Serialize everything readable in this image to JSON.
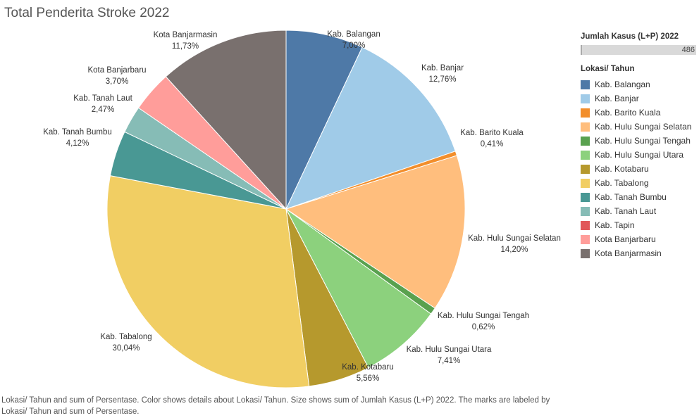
{
  "title": "Total Penderita Stroke 2022",
  "legend": {
    "size_title": "Jumlah Kasus (L+P) 2022",
    "size_value": "486",
    "color_title": "Lokasi/ Tahun"
  },
  "footer": "Lokasi/ Tahun and sum of Persentase.  Color shows details about Lokasi/ Tahun.  Size shows sum of Jumlah Kasus (L+P) 2022.  The marks are labeled by Lokasi/ Tahun and sum of Persentase.",
  "chart_data": {
    "type": "pie",
    "title": "Total Penderita Stroke 2022",
    "slices": [
      {
        "name": "Kab. Balangan",
        "value": 7.0,
        "label": "7,00%",
        "color": "#4e79a7"
      },
      {
        "name": "Kab. Banjar",
        "value": 12.76,
        "label": "12,76%",
        "color": "#a0cbe8"
      },
      {
        "name": "Kab. Barito Kuala",
        "value": 0.41,
        "label": "0,41%",
        "color": "#f28e2b"
      },
      {
        "name": "Kab. Hulu Sungai Selatan",
        "value": 14.2,
        "label": "14,20%",
        "color": "#ffbe7d"
      },
      {
        "name": "Kab. Hulu Sungai Tengah",
        "value": 0.62,
        "label": "0,62%",
        "color": "#59a14f"
      },
      {
        "name": "Kab. Hulu Sungai Utara",
        "value": 7.41,
        "label": "7,41%",
        "color": "#8cd17d"
      },
      {
        "name": "Kab. Kotabaru",
        "value": 5.56,
        "label": "5,56%",
        "color": "#b6992d"
      },
      {
        "name": "Kab. Tabalong",
        "value": 30.04,
        "label": "30,04%",
        "color": "#f1ce63"
      },
      {
        "name": "Kab. Tanah Bumbu",
        "value": 4.12,
        "label": "4,12%",
        "color": "#499894"
      },
      {
        "name": "Kab. Tanah Laut",
        "value": 2.47,
        "label": "2,47%",
        "color": "#86bcb6"
      },
      {
        "name": "Kab. Tapin",
        "value": 0,
        "label": "",
        "color": "#e15759"
      },
      {
        "name": "Kota Banjarbaru",
        "value": 3.7,
        "label": "3,70%",
        "color": "#ff9d9a"
      },
      {
        "name": "Kota Banjarmasin",
        "value": 11.73,
        "label": "11,73%",
        "color": "#79706e"
      }
    ]
  }
}
